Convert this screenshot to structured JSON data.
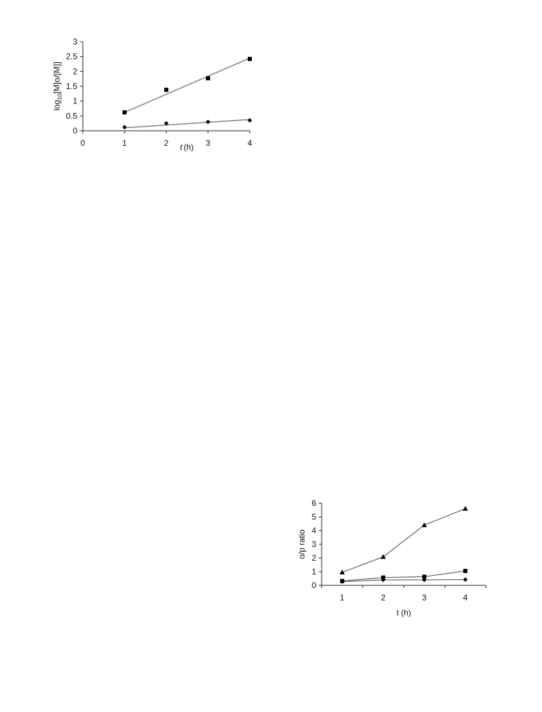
{
  "chart_data": [
    {
      "type": "scatter",
      "xlabel_var": "t",
      "xlabel_unit": "(h)",
      "ylabel_main": "log",
      "ylabel_sub": "10",
      "ylabel_rest": "[M]o/[M]]",
      "xlim": [
        0,
        4
      ],
      "ylim": [
        0,
        3
      ],
      "xticks": [
        "0",
        "1",
        "2",
        "3",
        "4"
      ],
      "yticks": [
        "0",
        "0.5",
        "1",
        "1.5",
        "2",
        "2.5",
        "3"
      ],
      "grid": false,
      "series": [
        {
          "marker": "square",
          "x": [
            1,
            2,
            3,
            4
          ],
          "y": [
            0.62,
            1.38,
            1.77,
            2.42
          ],
          "trendline": [
            [
              1,
              0.62
            ],
            [
              4,
              2.45
            ]
          ],
          "line_color": "#8a8a8a"
        },
        {
          "marker": "diamond",
          "x": [
            1,
            2,
            3,
            4
          ],
          "y": [
            0.12,
            0.25,
            0.3,
            0.35
          ],
          "trendline": [
            [
              1,
              0.1
            ],
            [
              4,
              0.38
            ]
          ],
          "line_color": "#8a8a8a"
        }
      ]
    },
    {
      "type": "line",
      "xlabel": "t (h)",
      "ylabel": "o/p ratio",
      "xlim": [
        0.5,
        4.5
      ],
      "ylim": [
        0,
        6
      ],
      "xticks": [
        "1",
        "2",
        "3",
        "4"
      ],
      "yticks": [
        "0",
        "1",
        "2",
        "3",
        "4",
        "5",
        "6"
      ],
      "grid": false,
      "series": [
        {
          "marker": "triangle",
          "x": [
            1,
            2,
            3,
            4
          ],
          "y": [
            0.95,
            2.08,
            4.4,
            5.6
          ],
          "line_color": "#444444"
        },
        {
          "marker": "square",
          "x": [
            1,
            2,
            3,
            4
          ],
          "y": [
            0.32,
            0.57,
            0.63,
            1.05
          ],
          "line_color": "#444444"
        },
        {
          "marker": "diamond",
          "x": [
            1,
            2,
            3,
            4
          ],
          "y": [
            0.27,
            0.4,
            0.4,
            0.42
          ],
          "line_color": "#444444"
        }
      ]
    }
  ]
}
